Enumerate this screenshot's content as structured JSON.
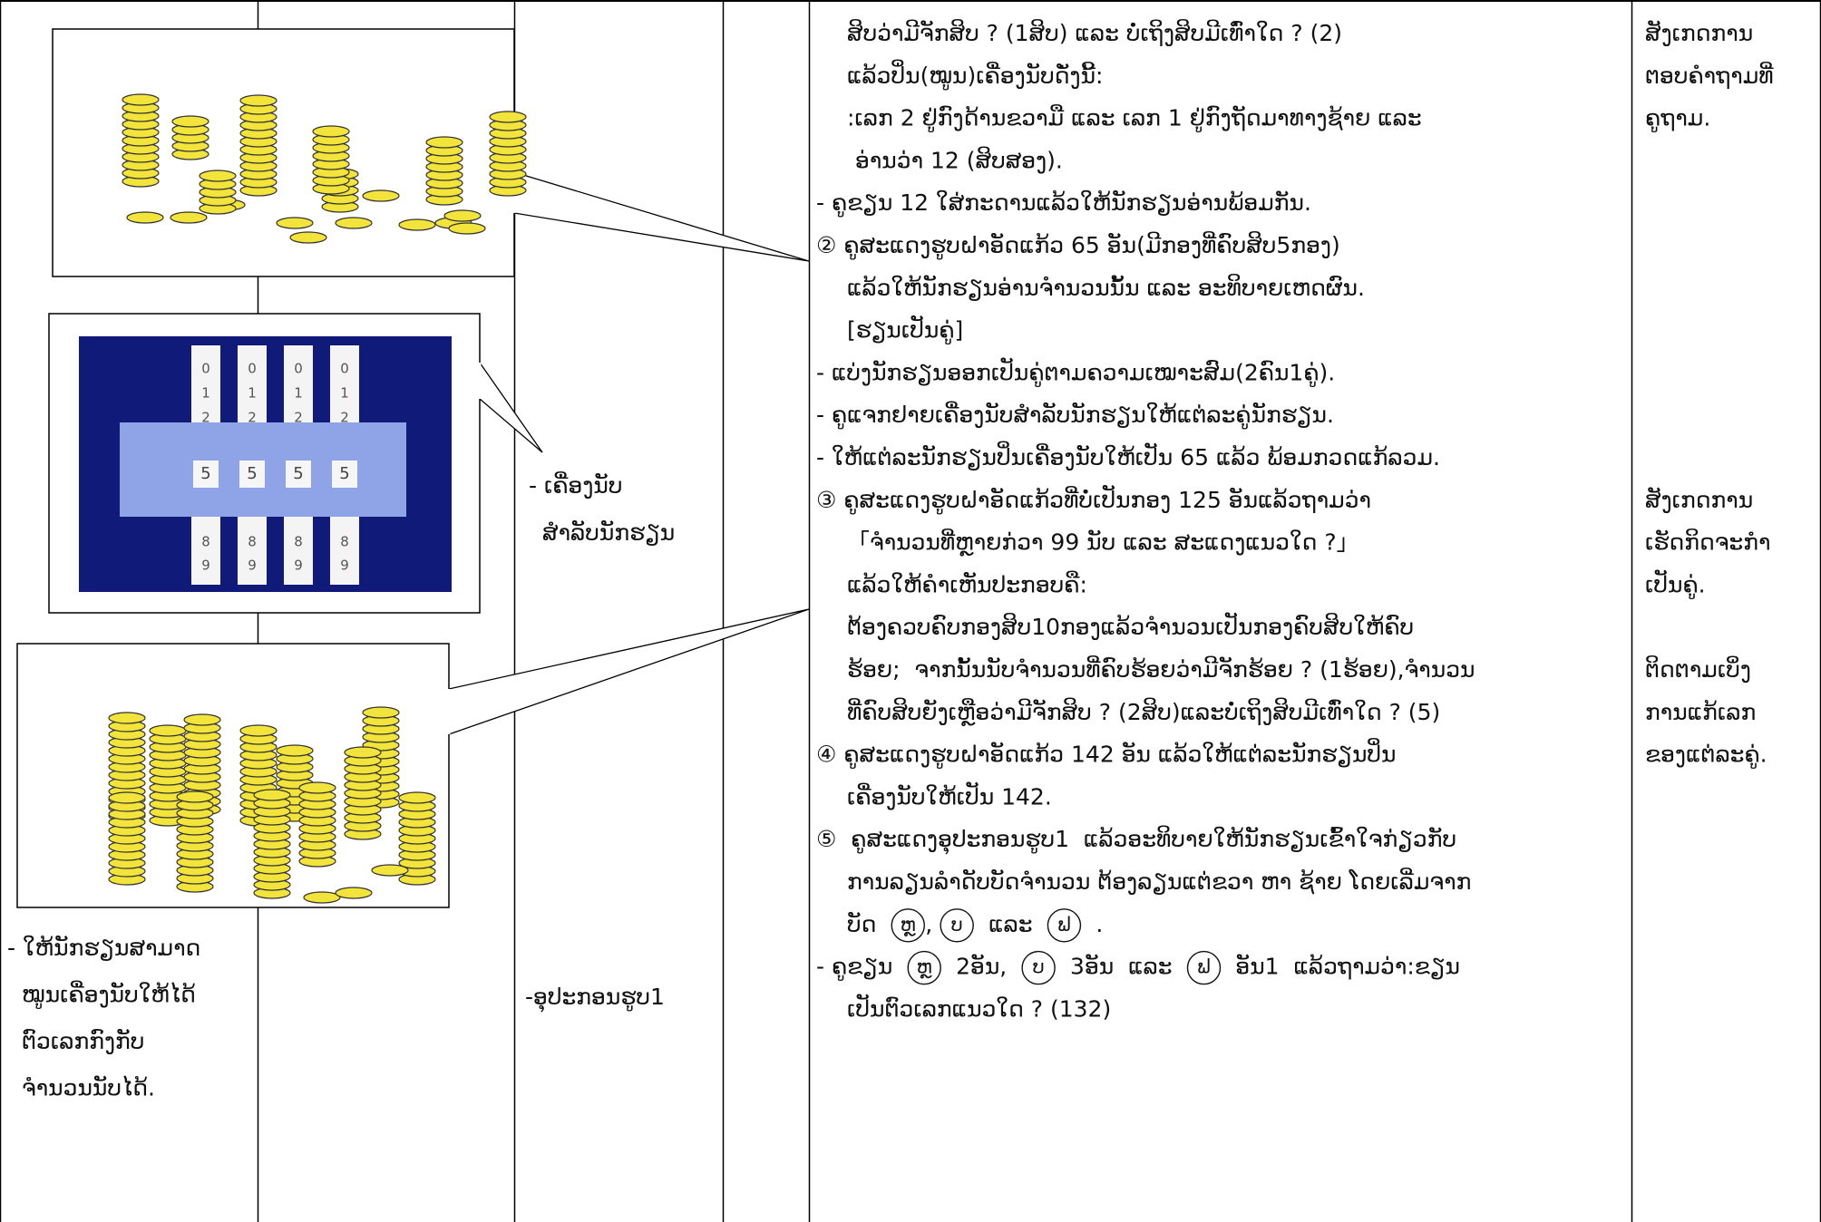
{
  "objective": [
    "- ໃຫ້ນັກຮຽນສາມາດ",
    "ໝູນເຄື່ອງນັບໃຫ້ໄດ້",
    "ຕົວເລກກົງກັບ",
    "ຈຳນວນນັບໄດ້."
  ],
  "materials": {
    "counters": [
      "- ເຄື່ອງນັບ",
      "ສຳລັບນັກຮຽນ"
    ],
    "figure": "-ອຸປະກອນຮູບ1"
  },
  "activities": [
    "ສິບວ່າມີຈັກສິບ ? (1ສິບ) ແລະ ບໍ່ເຖິງສິບມີເທົ່າໃດ ? (2)",
    "ແລ້ວປິ່ນ(ໝູນ)ເຄື່ອງນັບດັ່ງນີ້:",
    ":ເລກ 2 ຢູ່ກົງດ້ານຂວາມື ແລະ ເລກ 1 ຢູ່ກົງຖັດມາທາງຊ້າຍ ແລະ",
    "ອ່ານວ່າ 12 (ສິບສອງ).",
    "- ຄູຂຽນ 12 ໃສ່ກະດານແລ້ວໃຫ້ນັກຮຽນອ່ານພ້ອມກັນ.",
    "② ຄູສະແດງຮູບຝາອັດແກ້ວ 65 ອັນ(ມີກອງທີ່ຄົບສິບ5ກອງ)",
    "ແລ້ວໃຫ້ນັກຮຽນອ່ານຈຳນວນນັ້ນ ແລະ ອະທິບາຍເຫດຜົນ.",
    "[ຮຽນເປັນຄູ່]",
    "- ແບ່ງນັກຮຽນອອກເປັນຄູ່ຕາມຄວາມເໝາະສົມ(2ຄົນ1ຄູ່).",
    "- ຄູແຈກຢາຍເຄື່ອງນັບສຳລັບນັກຮຽນໃຫ້ແຕ່ລະຄູ່ນັກຮຽນ.",
    "- ໃຫ້ແຕ່ລະນັກຮຽນປິ່ນເຄື່ອງນັບໃຫ້ເປັນ 65 ແລ້ວ ພ້ອມກວດແກ້ລວມ.",
    "③ ຄູສະແດງຮູບຝາອັດແກ້ວທີ່ບໍ່ເປັນກອງ 125 ອັນແລ້ວຖາມວ່າ",
    "「ຈຳນວນທີ່ຫຼາຍກ່ວາ 99 ນັບ ແລະ ສະແດງແນວໃດ ?」",
    "ແລ້ວໃຫ້ຄຳເຫັນປະກອບຄື:",
    "ຕ້ອງຄວບຄົບກອງສິບ10ກອງແລ້ວຈຳນວນເປັນກອງຄົບສິບໃຫ້ຄົບ",
    "ຮ້ອຍ;  ຈາກນັ້ນນັບຈຳນວນທີ່ຄົບຮ້ອຍວ່າມີຈັກຮ້ອຍ ? (1ຮ້ອຍ),ຈຳນວນ",
    "ທີ່ຄົບສິບຍັງເຫຼືອວ່າມີຈັກສິບ ? (2ສິບ)ແລະບໍ່ເຖິງສິບມີເທົ່າໃດ ? (5)",
    "④ ຄູສະແດງຮູບຝາອັດແກ້ວ 142 ອັນ ແລ້ວໃຫ້ແຕ່ລະນັກຮຽນປິ່ນ",
    "ເຄື່ອງນັບໃຫ້ເປັນ 142.",
    "⑤  ຄູສະແດງອຸປະກອນຮູບ1  ແລ້ວອະທິບາຍໃຫ້ນັກຮຽນເຂົ້າໃຈກ່ຽວກັບ",
    "ການລຽນລຳດັບບັດຈຳນວນ ຕ້ອງລຽນແຕ່ຂວາ ຫາ ຊ້າຍ ໂດຍເລີ່ມຈາກ",
    [
      {
        "text": "ບັດ  "
      },
      {
        "circled": "ຫຼ"
      },
      {
        "text": ", "
      },
      {
        "circled": "ບ"
      },
      {
        "text": "  ແລະ  "
      },
      {
        "circled": "ຟ"
      },
      {
        "text": "  ."
      }
    ],
    [
      {
        "text": "- ຄູຂຽນ  "
      },
      {
        "circled": "ຫຼ"
      },
      {
        "text": "  2ອັນ,  "
      },
      {
        "circled": "ບ"
      },
      {
        "text": "  3ອັນ  ແລະ  "
      },
      {
        "circled": "ຟ"
      },
      {
        "text": "  ອັນ1  ແລ້ວຖາມວ່າ:ຂຽນ"
      }
    ],
    "ເປັນຕົວເລກແນວໃດ ? (132)"
  ],
  "assessment": [
    [
      "ສັງເກດການ",
      "ຕອບຄຳຖາມທີ່",
      "ຄູຖາມ."
    ],
    [
      "ສັງເກດການ",
      "ເຮັດກິດຈະກຳ",
      "ເປັນຄູ່."
    ],
    [
      "ຕິດຕາມເບິ່ງ",
      "ການແກ້ເລກ",
      "ຂອງແຕ່ລະຄູ່."
    ]
  ],
  "figure_cards": {
    "top": [
      "0",
      "1",
      "2"
    ],
    "middle": "5",
    "bottom": [
      "8",
      "9"
    ]
  }
}
